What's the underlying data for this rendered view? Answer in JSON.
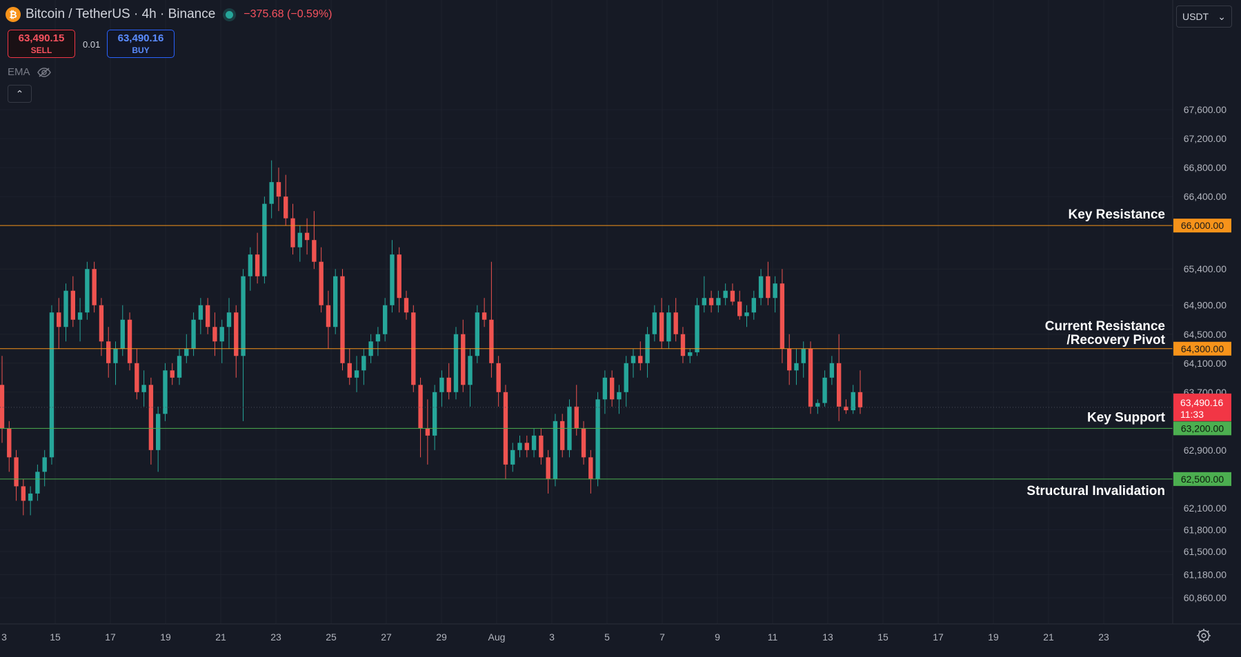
{
  "header": {
    "symbol_title": "Bitcoin / TetherUS · 4h · Binance",
    "change": "−375.68 (−0.59%)",
    "coin_icon": "bitcoin-icon",
    "coin_glyph": "₿"
  },
  "trade": {
    "sell_price": "63,490.15",
    "sell_label": "SELL",
    "spread": "0.01",
    "buy_price": "63,490.16",
    "buy_label": "BUY"
  },
  "indicator": {
    "label": "EMA",
    "visibility_icon": "eye-off-icon"
  },
  "controls": {
    "collapse_glyph": "⌃",
    "currency": "USDT",
    "currency_caret": "⌄",
    "settings_icon": "gear-icon"
  },
  "colors": {
    "background": "#161a25",
    "up": "#26a69a",
    "down": "#ef5350",
    "resistance": "#f7931a",
    "support": "#4caf50",
    "last_price": "#f23645"
  },
  "chart_data": {
    "type": "candlestick",
    "interval": "4h",
    "ylim": [
      60500,
      67700
    ],
    "price_ticks": [
      "60,860.00",
      "61,180.00",
      "61,500.00",
      "61,800.00",
      "62,100.00",
      "62,900.00",
      "63,700.00",
      "64,100.00",
      "64,500.00",
      "64,900.00",
      "65,400.00",
      "66,400.00",
      "66,800.00",
      "67,200.00",
      "67,600.00"
    ],
    "x_ticks": [
      "3",
      "15",
      "17",
      "19",
      "21",
      "23",
      "25",
      "27",
      "29",
      "Aug",
      "3",
      "5",
      "7",
      "9",
      "11",
      "13",
      "15",
      "17",
      "19",
      "21",
      "23"
    ],
    "levels": [
      {
        "price": 66000,
        "label": "Key Resistance",
        "tag": "66,000.00",
        "kind": "resistance"
      },
      {
        "price": 64300,
        "label": "Current Resistance",
        "label2": "/Recovery Pivot",
        "tag": "64,300.00",
        "kind": "resistance"
      },
      {
        "price": 63200,
        "label": "Key Support",
        "tag": "63,200.00",
        "kind": "support"
      },
      {
        "price": 62500,
        "label": "Structural Invalidation",
        "tag": "62,500.00",
        "kind": "support"
      }
    ],
    "last_price": {
      "price": 63490.16,
      "tag": "63,490.16",
      "countdown": "11:33"
    },
    "candles": [
      [
        63800,
        64200,
        63000,
        63200
      ],
      [
        63200,
        63300,
        62600,
        62800
      ],
      [
        62800,
        62900,
        62200,
        62400
      ],
      [
        62400,
        62500,
        62000,
        62200
      ],
      [
        62200,
        62400,
        62000,
        62300
      ],
      [
        62300,
        62700,
        62200,
        62600
      ],
      [
        62600,
        62900,
        62400,
        62800
      ],
      [
        62800,
        64900,
        62700,
        64800
      ],
      [
        64800,
        65000,
        64300,
        64600
      ],
      [
        64600,
        65200,
        64400,
        65100
      ],
      [
        65100,
        65300,
        64600,
        64700
      ],
      [
        64700,
        65000,
        64400,
        64800
      ],
      [
        64800,
        65500,
        64700,
        65400
      ],
      [
        65400,
        65500,
        64800,
        64900
      ],
      [
        64900,
        65000,
        64200,
        64400
      ],
      [
        64400,
        64600,
        63900,
        64100
      ],
      [
        64100,
        64400,
        63800,
        64300
      ],
      [
        64300,
        64900,
        64200,
        64700
      ],
      [
        64700,
        64800,
        64000,
        64100
      ],
      [
        64100,
        64300,
        63600,
        63700
      ],
      [
        63700,
        64000,
        63500,
        63800
      ],
      [
        63800,
        63900,
        62700,
        62900
      ],
      [
        62900,
        63500,
        62600,
        63400
      ],
      [
        63400,
        64100,
        63300,
        64000
      ],
      [
        64000,
        64100,
        63800,
        63900
      ],
      [
        63900,
        64300,
        63800,
        64200
      ],
      [
        64200,
        64500,
        64100,
        64300
      ],
      [
        64300,
        64800,
        64200,
        64700
      ],
      [
        64700,
        65000,
        64500,
        64900
      ],
      [
        64900,
        65000,
        64500,
        64600
      ],
      [
        64600,
        64800,
        64200,
        64400
      ],
      [
        64400,
        64700,
        64100,
        64600
      ],
      [
        64600,
        65000,
        64300,
        64800
      ],
      [
        64800,
        64900,
        63900,
        64200
      ],
      [
        64200,
        65400,
        63300,
        65300
      ],
      [
        65300,
        65700,
        65100,
        65600
      ],
      [
        65600,
        65900,
        65200,
        65300
      ],
      [
        65300,
        66400,
        65200,
        66300
      ],
      [
        66300,
        66900,
        66100,
        66600
      ],
      [
        66600,
        66800,
        66200,
        66400
      ],
      [
        66400,
        66700,
        66000,
        66100
      ],
      [
        66100,
        66300,
        65600,
        65700
      ],
      [
        65700,
        66000,
        65500,
        65900
      ],
      [
        65900,
        66100,
        65600,
        65800
      ],
      [
        65800,
        66200,
        65400,
        65500
      ],
      [
        65500,
        65700,
        64800,
        64900
      ],
      [
        64900,
        65100,
        64300,
        64600
      ],
      [
        64600,
        65400,
        64500,
        65300
      ],
      [
        65300,
        65400,
        64000,
        64100
      ],
      [
        64100,
        64300,
        63800,
        63900
      ],
      [
        63900,
        64200,
        63700,
        64000
      ],
      [
        64000,
        64300,
        63800,
        64200
      ],
      [
        64200,
        64500,
        64100,
        64400
      ],
      [
        64400,
        64600,
        64200,
        64500
      ],
      [
        64500,
        65000,
        64400,
        64900
      ],
      [
        64900,
        65800,
        64800,
        65600
      ],
      [
        65600,
        65700,
        64800,
        65000
      ],
      [
        65000,
        65100,
        64700,
        64800
      ],
      [
        64800,
        64900,
        63700,
        63800
      ],
      [
        63800,
        63900,
        62800,
        63200
      ],
      [
        63200,
        63600,
        62700,
        63100
      ],
      [
        63100,
        63800,
        62900,
        63700
      ],
      [
        63700,
        64000,
        63500,
        63900
      ],
      [
        63900,
        64100,
        63600,
        63700
      ],
      [
        63700,
        64600,
        63600,
        64500
      ],
      [
        64500,
        64700,
        63700,
        63800
      ],
      [
        63800,
        64300,
        63500,
        64200
      ],
      [
        64200,
        64900,
        64100,
        64800
      ],
      [
        64800,
        65000,
        64600,
        64700
      ],
      [
        64700,
        65500,
        63900,
        64100
      ],
      [
        64100,
        64200,
        63500,
        63700
      ],
      [
        63700,
        63800,
        62500,
        62700
      ],
      [
        62700,
        63000,
        62600,
        62900
      ],
      [
        62900,
        63100,
        62800,
        63000
      ],
      [
        63000,
        63100,
        62800,
        62900
      ],
      [
        62900,
        63200,
        62800,
        63100
      ],
      [
        63100,
        63200,
        62700,
        62800
      ],
      [
        62800,
        62900,
        62300,
        62500
      ],
      [
        62500,
        63400,
        62400,
        63300
      ],
      [
        63300,
        63400,
        62800,
        62900
      ],
      [
        62900,
        63600,
        62800,
        63500
      ],
      [
        63500,
        63800,
        63100,
        63200
      ],
      [
        63200,
        63300,
        62700,
        62800
      ],
      [
        62800,
        62900,
        62300,
        62500
      ],
      [
        62500,
        63700,
        62400,
        63600
      ],
      [
        63600,
        64000,
        63400,
        63900
      ],
      [
        63900,
        64000,
        63500,
        63600
      ],
      [
        63600,
        63800,
        63400,
        63700
      ],
      [
        63700,
        64200,
        63500,
        64100
      ],
      [
        64100,
        64300,
        63900,
        64200
      ],
      [
        64200,
        64400,
        64000,
        64100
      ],
      [
        64100,
        64600,
        63900,
        64500
      ],
      [
        64500,
        64900,
        64400,
        64800
      ],
      [
        64800,
        65000,
        64300,
        64400
      ],
      [
        64400,
        64900,
        64300,
        64800
      ],
      [
        64800,
        65000,
        64400,
        64500
      ],
      [
        64500,
        64600,
        64100,
        64200
      ],
      [
        64200,
        64300,
        64100,
        64250
      ],
      [
        64250,
        65000,
        64200,
        64900
      ],
      [
        64900,
        65300,
        64800,
        65000
      ],
      [
        65000,
        65100,
        64800,
        64900
      ],
      [
        64900,
        65100,
        64800,
        65000
      ],
      [
        65000,
        65200,
        64900,
        65100
      ],
      [
        65100,
        65200,
        64900,
        64950
      ],
      [
        64950,
        65100,
        64700,
        64750
      ],
      [
        64750,
        64900,
        64600,
        64800
      ],
      [
        64800,
        65100,
        64700,
        65000
      ],
      [
        65000,
        65400,
        64900,
        65300
      ],
      [
        65300,
        65500,
        64900,
        65000
      ],
      [
        65000,
        65300,
        64800,
        65200
      ],
      [
        65200,
        65400,
        64100,
        64300
      ],
      [
        64300,
        64500,
        63800,
        64000
      ],
      [
        64000,
        64300,
        63800,
        64100
      ],
      [
        64100,
        64400,
        63900,
        64300
      ],
      [
        64300,
        64400,
        63400,
        63500
      ],
      [
        63500,
        63600,
        63400,
        63550
      ],
      [
        63550,
        64000,
        63500,
        63900
      ],
      [
        63900,
        64200,
        63800,
        64100
      ],
      [
        64100,
        64500,
        63300,
        63500
      ],
      [
        63500,
        63600,
        63400,
        63450
      ],
      [
        63450,
        63800,
        63400,
        63700
      ],
      [
        63700,
        64000,
        63400,
        63490
      ]
    ]
  }
}
